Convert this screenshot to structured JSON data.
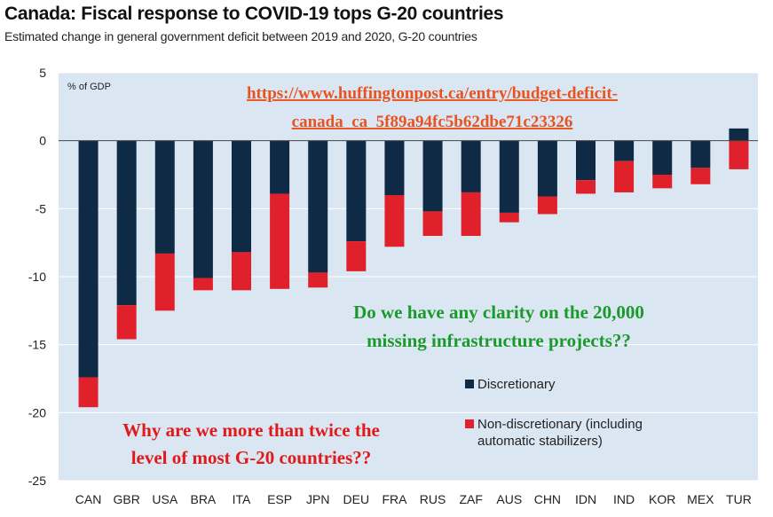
{
  "title": "Canada: Fiscal response to COVID-19 tops G-20 countries",
  "subtitle": "Estimated change in general government deficit between 2019 and 2020, G-20 countries",
  "chart_data": {
    "type": "bar",
    "stacked": true,
    "unit_label": "% of GDP",
    "ylim": [
      -25,
      5
    ],
    "yticks": [
      5,
      0,
      -5,
      -10,
      -15,
      -20,
      -25
    ],
    "grid": "horizontal",
    "legend_position": "bottom-right",
    "categories": [
      "CAN",
      "GBR",
      "USA",
      "BRA",
      "ITA",
      "ESP",
      "JPN",
      "DEU",
      "FRA",
      "RUS",
      "ZAF",
      "AUS",
      "CHN",
      "IDN",
      "IND",
      "KOR",
      "MEX",
      "TUR"
    ],
    "series": [
      {
        "name": "Discretionary",
        "color": "#0f2a44",
        "values": [
          -17.4,
          -12.1,
          -8.3,
          -10.1,
          -8.2,
          -3.9,
          -9.7,
          -7.4,
          -4.0,
          -5.2,
          -3.8,
          -5.3,
          -4.1,
          -2.9,
          -1.5,
          -2.5,
          -2.0,
          0.9
        ]
      },
      {
        "name": "Non-discretionary (including automatic stabilizers)",
        "color": "#e0202b",
        "values": [
          -2.2,
          -2.5,
          -4.2,
          -0.9,
          -2.8,
          -7.0,
          -1.1,
          -2.2,
          -3.8,
          -1.8,
          -3.2,
          -0.7,
          -1.3,
          -1.0,
          -2.3,
          -1.0,
          -1.2,
          -2.1
        ]
      }
    ]
  },
  "annotations": {
    "url_line1": "https://www.huffingtonpost.ca/entry/budget-deficit-",
    "url_line2": "canada_ca_5f89a94fc5b62dbe71c23326",
    "green_line1": "Do we have any clarity on the 20,000",
    "green_line2": "missing infrastructure projects??",
    "red_line1": "Why are we more than twice the",
    "red_line2": "level of most G-20 countries??"
  },
  "legend": {
    "item1": "Discretionary",
    "item2_line1": "Non-discretionary (including",
    "item2_line2": "automatic stabilizers)"
  },
  "colors": {
    "plot_bg": "#dbe6f3",
    "grid": "#ffffff"
  }
}
